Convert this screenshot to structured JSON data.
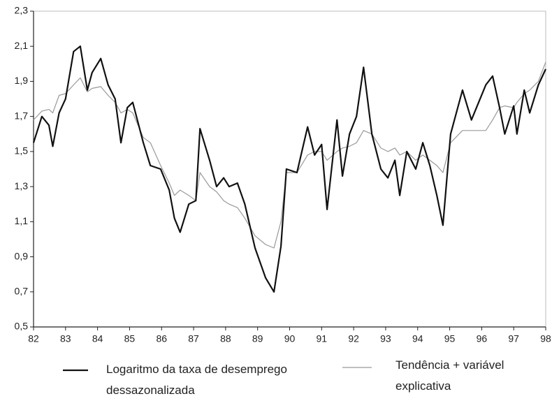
{
  "chart_data": {
    "type": "line",
    "x": [
      82.0,
      82.26,
      82.48,
      82.6,
      82.8,
      83.0,
      83.25,
      83.46,
      83.68,
      83.83,
      84.1,
      84.33,
      84.55,
      84.73,
      84.93,
      85.1,
      85.43,
      85.65,
      85.97,
      86.24,
      86.4,
      86.58,
      86.85,
      87.07,
      87.2,
      87.5,
      87.72,
      87.94,
      88.11,
      88.37,
      88.6,
      88.92,
      89.25,
      89.51,
      89.73,
      89.9,
      90.23,
      90.56,
      90.78,
      91.0,
      91.17,
      91.48,
      91.65,
      91.87,
      92.09,
      92.31,
      92.57,
      92.85,
      93.07,
      93.29,
      93.44,
      93.66,
      93.94,
      94.16,
      94.38,
      94.6,
      94.79,
      95.03,
      95.4,
      95.68,
      96.13,
      96.34,
      96.56,
      96.72,
      97.0,
      97.1,
      97.33,
      97.5,
      97.77,
      98.0
    ],
    "series": [
      {
        "name": "Logaritmo da taxa de desemprego dessazonalizada",
        "color": "#111111",
        "values": [
          1.55,
          1.7,
          1.65,
          1.53,
          1.72,
          1.8,
          2.07,
          2.1,
          1.85,
          1.95,
          2.03,
          1.88,
          1.8,
          1.55,
          1.75,
          1.78,
          1.55,
          1.42,
          1.4,
          1.28,
          1.12,
          1.04,
          1.2,
          1.22,
          1.63,
          1.45,
          1.3,
          1.35,
          1.3,
          1.32,
          1.2,
          0.95,
          0.78,
          0.7,
          0.96,
          1.4,
          1.38,
          1.64,
          1.48,
          1.54,
          1.17,
          1.68,
          1.36,
          1.6,
          1.7,
          1.98,
          1.6,
          1.4,
          1.35,
          1.45,
          1.25,
          1.5,
          1.4,
          1.55,
          1.42,
          1.25,
          1.08,
          1.6,
          1.85,
          1.68,
          1.88,
          1.93,
          1.75,
          1.6,
          1.76,
          1.6,
          1.85,
          1.72,
          1.88,
          1.97
        ]
      },
      {
        "name": "Tendência + variável explicativa",
        "color": "#999999",
        "values": [
          1.68,
          1.73,
          1.74,
          1.72,
          1.82,
          1.83,
          1.88,
          1.92,
          1.84,
          1.86,
          1.87,
          1.82,
          1.78,
          1.72,
          1.74,
          1.72,
          1.58,
          1.55,
          1.42,
          1.32,
          1.25,
          1.28,
          1.25,
          1.22,
          1.38,
          1.3,
          1.27,
          1.22,
          1.2,
          1.18,
          1.12,
          1.02,
          0.97,
          0.95,
          1.1,
          1.38,
          1.38,
          1.48,
          1.5,
          1.5,
          1.45,
          1.5,
          1.52,
          1.53,
          1.55,
          1.62,
          1.6,
          1.52,
          1.5,
          1.52,
          1.48,
          1.5,
          1.45,
          1.48,
          1.45,
          1.42,
          1.38,
          1.55,
          1.62,
          1.62,
          1.62,
          1.68,
          1.75,
          1.76,
          1.75,
          1.78,
          1.83,
          1.85,
          1.9,
          2.01
        ]
      }
    ],
    "xlim": [
      82,
      98
    ],
    "xticks": [
      82,
      83,
      84,
      85,
      86,
      87,
      88,
      89,
      90,
      91,
      92,
      93,
      94,
      95,
      96,
      97,
      98
    ],
    "ylim": [
      0.5,
      2.3
    ],
    "yticks": [
      {
        "value": 0.5,
        "label": "0,5"
      },
      {
        "value": 0.7,
        "label": "0,7"
      },
      {
        "value": 0.9,
        "label": "0,9"
      },
      {
        "value": 1.1,
        "label": "1,1"
      },
      {
        "value": 1.3,
        "label": "1,3"
      },
      {
        "value": 1.5,
        "label": "1,5"
      },
      {
        "value": 1.7,
        "label": "1,7"
      },
      {
        "value": 1.9,
        "label": "1,9"
      },
      {
        "value": 2.1,
        "label": "2,1"
      },
      {
        "value": 2.3,
        "label": "2,3"
      }
    ],
    "grid": false,
    "legend": "bottom"
  }
}
